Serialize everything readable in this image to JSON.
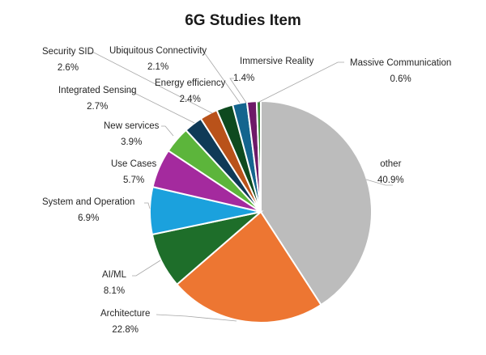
{
  "chart_data": {
    "type": "pie",
    "title": "6G Studies Item",
    "start_angle_deg": 0,
    "direction": "clockwise",
    "slices": [
      {
        "label": "other",
        "value": 40.9,
        "pct_label": "40.9%",
        "color": "#bcbcbc"
      },
      {
        "label": "Architecture",
        "value": 22.8,
        "pct_label": "22.8%",
        "color": "#ed7632"
      },
      {
        "label": "AI/ML",
        "value": 8.1,
        "pct_label": "8.1%",
        "color": "#1e6e2a"
      },
      {
        "label": "System and Operation",
        "value": 6.9,
        "pct_label": "6.9%",
        "color": "#1ba1dd"
      },
      {
        "label": "Use Cases",
        "value": 5.7,
        "pct_label": "5.7%",
        "color": "#a42a9e"
      },
      {
        "label": "New services",
        "value": 3.9,
        "pct_label": "3.9%",
        "color": "#5cb53b"
      },
      {
        "label": "Integrated Sensing",
        "value": 2.7,
        "pct_label": "2.7%",
        "color": "#0f3a57"
      },
      {
        "label": "Security SID",
        "value": 2.6,
        "pct_label": "2.6%",
        "color": "#b9521a"
      },
      {
        "label": "Energy efficiency",
        "value": 2.4,
        "pct_label": "2.4%",
        "color": "#0e4a1f"
      },
      {
        "label": "Ubiquitous Connectivity",
        "value": 2.1,
        "pct_label": "2.1%",
        "color": "#14658e"
      },
      {
        "label": "Immersive Reality",
        "value": 1.4,
        "pct_label": "1.4%",
        "color": "#6e1a68"
      },
      {
        "label": "Massive Communication",
        "value": 0.6,
        "pct_label": "0.6%",
        "color": "#3e8a3a"
      }
    ],
    "legend": "none (data labels with leader lines)"
  },
  "labels": {
    "other": {
      "name": "other",
      "pct": "40.9%"
    },
    "architecture": {
      "name": "Architecture",
      "pct": "22.8%"
    },
    "aiml": {
      "name": "AI/ML",
      "pct": "8.1%"
    },
    "system": {
      "name": "System and Operation",
      "pct": "6.9%"
    },
    "usecases": {
      "name": "Use Cases",
      "pct": "5.7%"
    },
    "newservices": {
      "name": "New services",
      "pct": "3.9%"
    },
    "sensing": {
      "name": "Integrated Sensing",
      "pct": "2.7%"
    },
    "security": {
      "name": "Security SID",
      "pct": "2.6%"
    },
    "energy": {
      "name": "Energy efficiency",
      "pct": "2.4%"
    },
    "ubiquitous": {
      "name": "Ubiquitous Connectivity",
      "pct": "2.1%"
    },
    "immersive": {
      "name": "Immersive Reality",
      "pct": "1.4%"
    },
    "massive": {
      "name": "Massive Communication",
      "pct": "0.6%"
    }
  }
}
